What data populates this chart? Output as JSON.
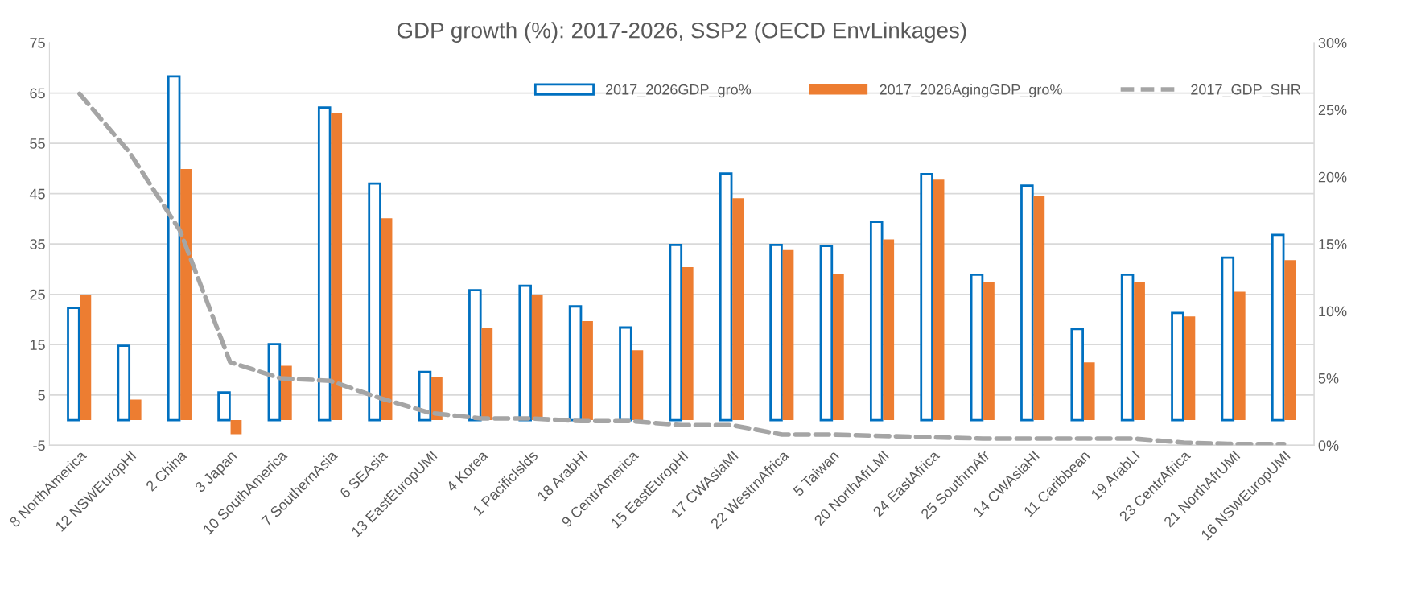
{
  "chart_data": {
    "type": "bar",
    "title": "GDP growth (%): 2017-2026, SSP2 (OECD EnvLinkages)",
    "categories": [
      "8 NorthAmerica",
      "12 NSWEuropHI",
      "2 China",
      "3 Japan",
      "10 SouthAmerica",
      "7 SouthernAsia",
      "6 SEAsia",
      "13 EastEuropUMI",
      "4 Korea",
      "1 PacificIslds",
      "18 ArabHI",
      "9 CentrAmerica",
      "15 EastEuropHI",
      "17 CWAsiaMI",
      "22 WestrnAfrica",
      "5 Taiwan",
      "20 NorthAfrLMI",
      "24 EastAfrica",
      "25 SouthrnAfr",
      "14 CWAsiaHI",
      "11 Caribbean",
      "19 ArabLI",
      "23 CentrAfrica",
      "21 NorthAfrUMI",
      "16 NSWEuropUMI"
    ],
    "series": [
      {
        "name": "2017_2026GDP_gro%",
        "color": "#0070c0",
        "values": [
          22.3,
          14.8,
          68.3,
          5.5,
          15.1,
          62.1,
          47.0,
          9.6,
          25.8,
          26.7,
          22.6,
          18.4,
          34.8,
          49.0,
          34.8,
          34.6,
          39.4,
          48.9,
          28.9,
          46.6,
          18.1,
          28.9,
          21.3,
          32.3,
          36.8
        ]
      },
      {
        "name": "2017_2026AgingGDP_gro%",
        "color": "#ed7d31",
        "values": [
          24.8,
          4.1,
          49.9,
          -2.8,
          10.8,
          61.1,
          40.1,
          8.5,
          18.4,
          24.9,
          19.7,
          13.9,
          30.4,
          44.1,
          33.8,
          29.1,
          35.9,
          47.8,
          27.4,
          44.6,
          11.5,
          27.4,
          20.6,
          25.5,
          31.8
        ]
      },
      {
        "name": "2017_GDP_SHR",
        "color": "#a5a5a5",
        "type": "line",
        "axis": "y2",
        "line_style": "dashed",
        "marker": "none",
        "values": [
          26.2,
          21.8,
          16.0,
          6.2,
          5.0,
          4.8,
          3.5,
          2.4,
          2.0,
          2.0,
          1.8,
          1.8,
          1.5,
          1.5,
          0.8,
          0.8,
          0.7,
          0.6,
          0.5,
          0.5,
          0.5,
          0.5,
          0.2,
          0.1,
          0.1
        ]
      }
    ],
    "ylim": [
      -5,
      75
    ],
    "yticks": [
      -5,
      5,
      15,
      25,
      35,
      45,
      55,
      65,
      75
    ],
    "y2lim": [
      0,
      30
    ],
    "y2ticks": [
      {
        "value": 0,
        "label": "0%"
      },
      {
        "value": 5,
        "label": "5%"
      },
      {
        "value": 10,
        "label": "10%"
      },
      {
        "value": 15,
        "label": "15%"
      },
      {
        "value": 20,
        "label": "20%"
      },
      {
        "value": 25,
        "label": "25%"
      },
      {
        "value": 30,
        "label": "30%"
      }
    ],
    "grid": "y",
    "legend": "top right"
  }
}
